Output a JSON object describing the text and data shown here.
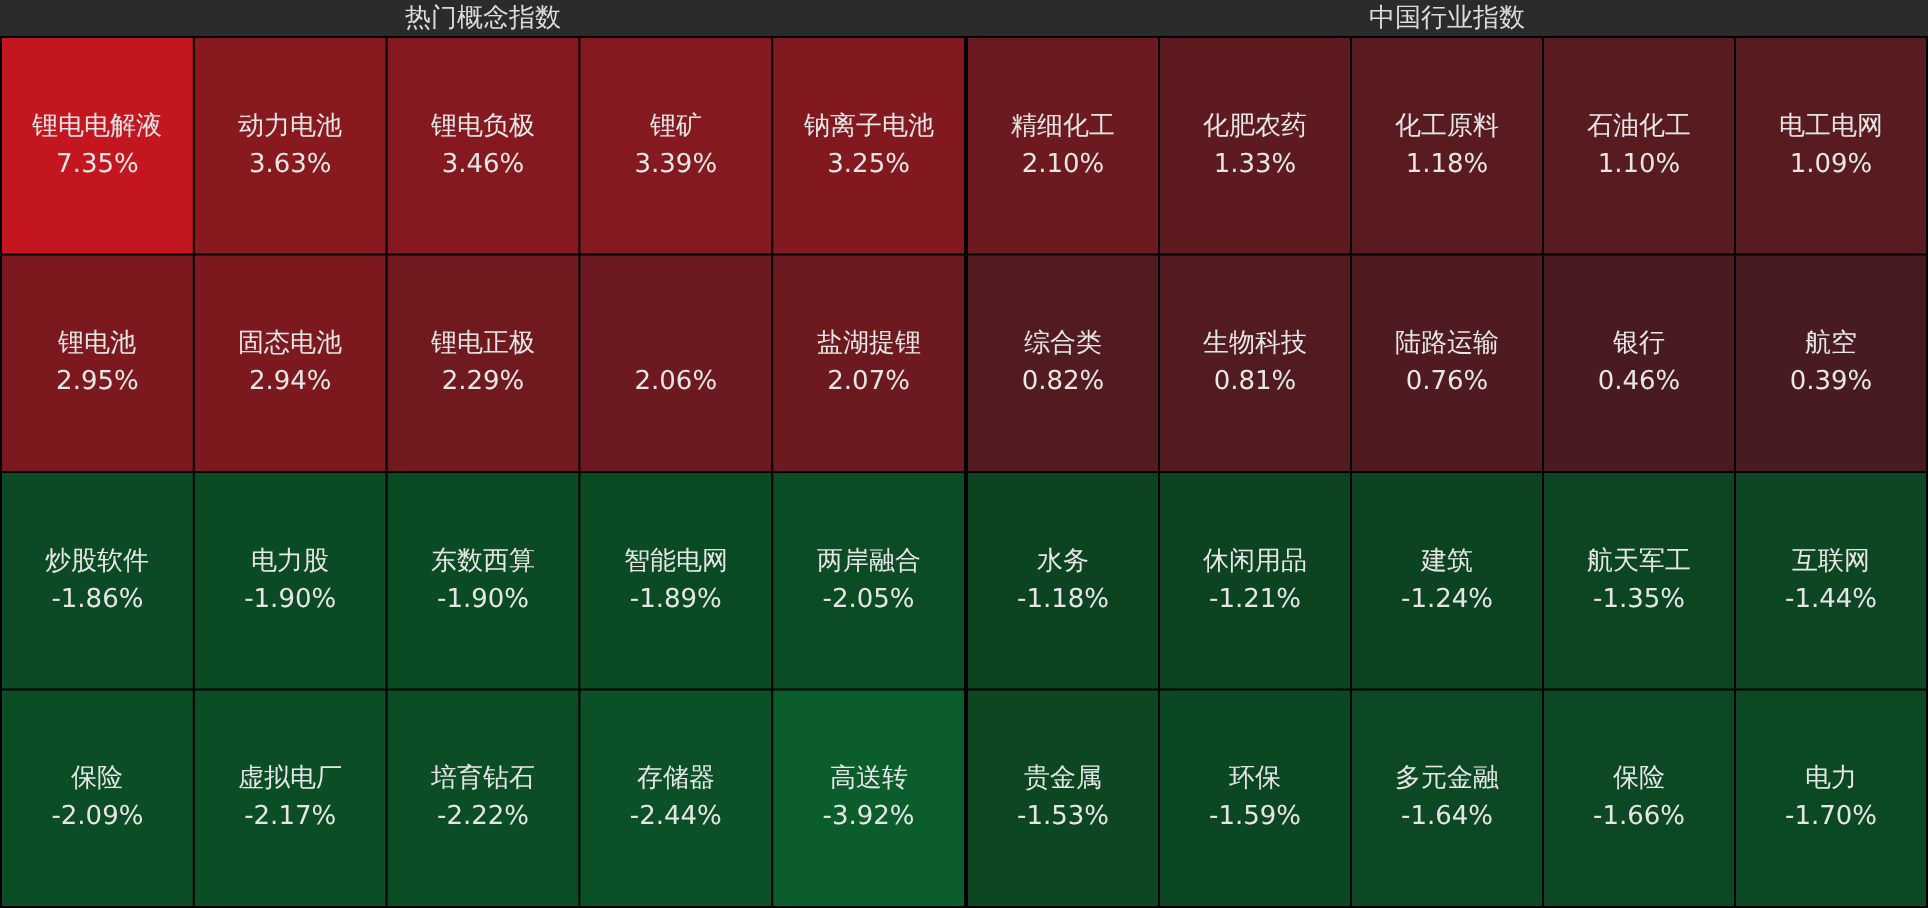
{
  "chart_data": [
    {
      "type": "other",
      "title": "热门概念指数",
      "categories": [
        "锂电电解液",
        "动力电池",
        "锂电负极",
        "锂矿",
        "钠离子电池",
        "锂电池",
        "固态电池",
        "锂电正极",
        null,
        "盐湖提锂",
        "炒股软件",
        "电力股",
        "东数西算",
        "智能电网",
        "两岸融合",
        "保险",
        "虚拟电厂",
        "培育钻石",
        "存储器",
        "高送转"
      ],
      "values": [
        7.35,
        3.63,
        3.46,
        3.39,
        3.25,
        2.95,
        2.94,
        2.29,
        2.06,
        2.07,
        -1.86,
        -1.9,
        -1.9,
        -1.89,
        -2.05,
        -2.09,
        -2.17,
        -2.22,
        -2.44,
        -3.92
      ],
      "value_labels": [
        "7.35%",
        "3.63%",
        "3.46%",
        "3.39%",
        "3.25%",
        "2.95%",
        "2.94%",
        "2.29%",
        "2.06%",
        "2.07%",
        "-1.86%",
        "-1.90%",
        "-1.90%",
        "-1.89%",
        "-2.05%",
        "-2.09%",
        "-2.17%",
        "-2.22%",
        "-2.44%",
        "-3.92%"
      ]
    },
    {
      "type": "other",
      "title": "中国行业指数",
      "categories": [
        "精细化工",
        "化肥农药",
        "化工原料",
        "石油化工",
        "电工电网",
        "综合类",
        "生物科技",
        "陆路运输",
        "银行",
        "航空",
        "水务",
        "休闲用品",
        "建筑",
        "航天军工",
        "互联网",
        "贵金属",
        "环保",
        "多元金融",
        "保险",
        "电力"
      ],
      "values": [
        2.1,
        1.33,
        1.18,
        1.1,
        1.09,
        0.82,
        0.81,
        0.76,
        0.46,
        0.39,
        -1.18,
        -1.21,
        -1.24,
        -1.35,
        -1.44,
        -1.53,
        -1.59,
        -1.64,
        -1.66,
        -1.7
      ],
      "value_labels": [
        "2.10%",
        "1.33%",
        "1.18%",
        "1.10%",
        "1.09%",
        "0.82%",
        "0.81%",
        "0.76%",
        "0.46%",
        "0.39%",
        "-1.18%",
        "-1.21%",
        "-1.24%",
        "-1.35%",
        "-1.44%",
        "-1.53%",
        "-1.59%",
        "-1.64%",
        "-1.66%",
        "-1.70%"
      ]
    }
  ]
}
